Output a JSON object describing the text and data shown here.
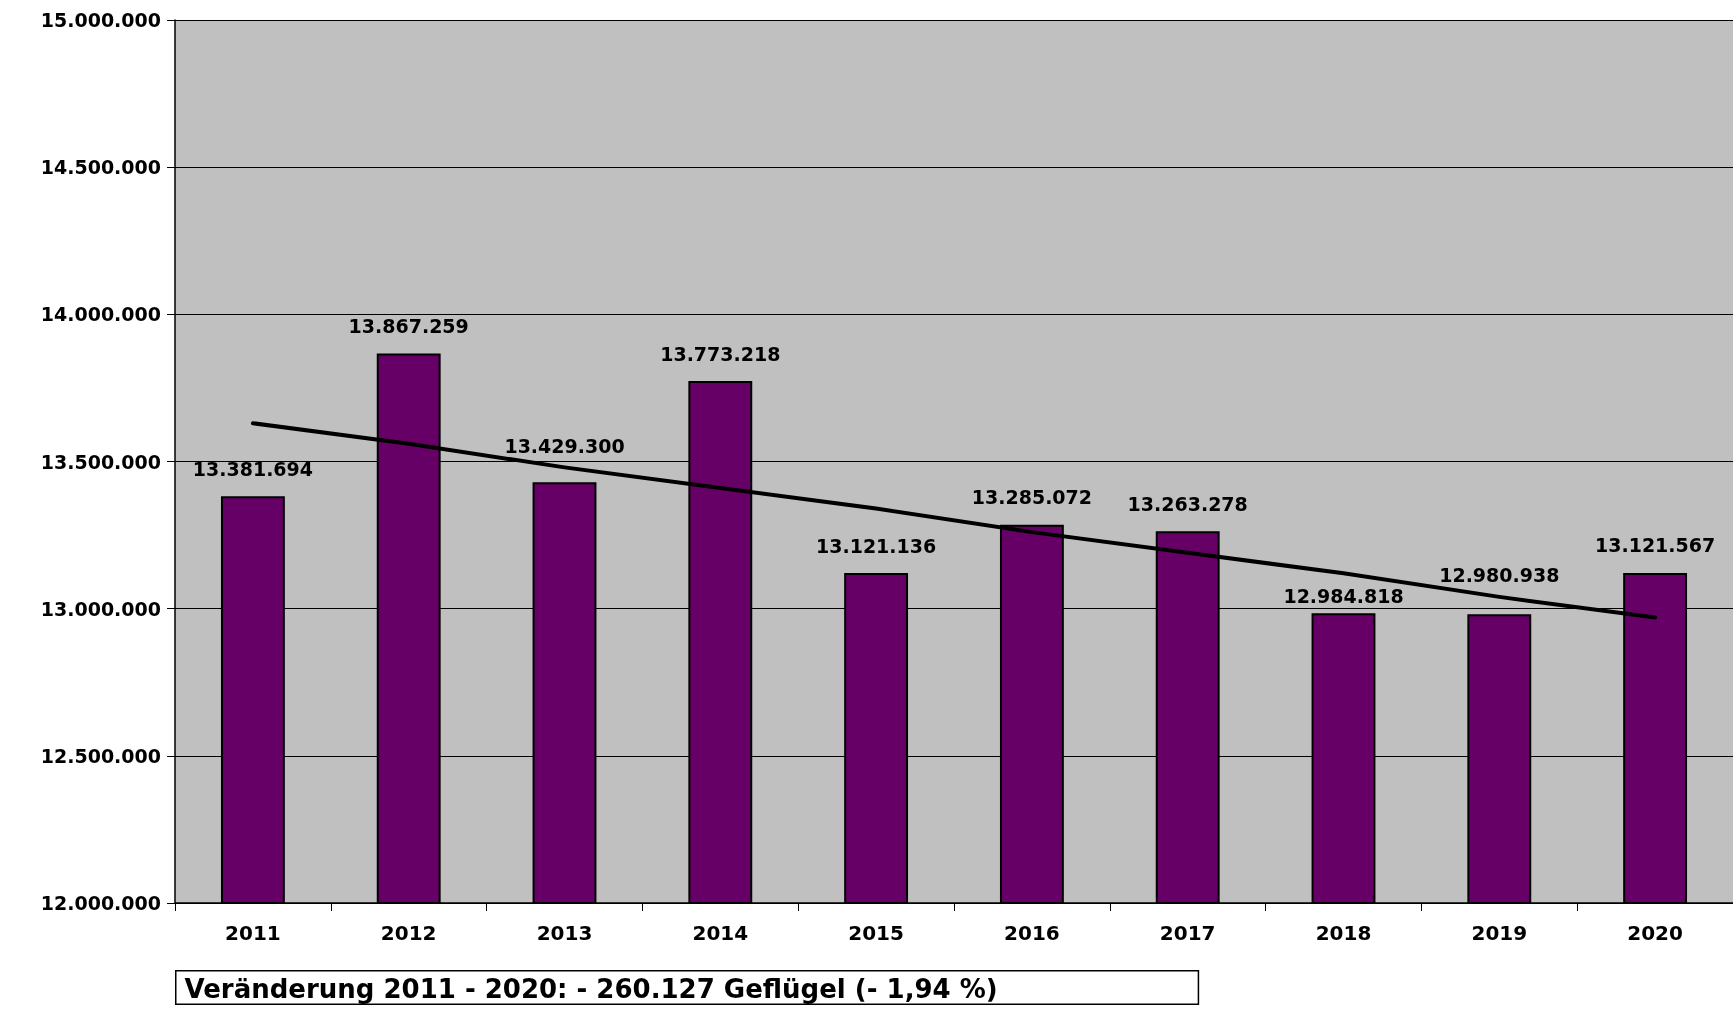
{
  "chart_data": {
    "type": "bar",
    "categories": [
      "2011",
      "2012",
      "2013",
      "2014",
      "2015",
      "2016",
      "2017",
      "2018",
      "2019",
      "2020"
    ],
    "series": [
      {
        "color": "#660066",
        "values": [
          13381694,
          13867259,
          13429300,
          13773218,
          13121136,
          13285072,
          13263278,
          12984818,
          12980938,
          13121567
        ],
        "value_labels": [
          "13.381.694",
          "13.867.259",
          "13.429.300",
          "13.773.218",
          "13.121.136",
          "13.285.072",
          "13.263.278",
          "12.984.818",
          "12.980.938",
          "13.121.567"
        ]
      },
      {
        "type": "line",
        "color": "#000000",
        "values": [
          13630000,
          13560000,
          13480000,
          13410000,
          13340000,
          13260000,
          13190000,
          13120000,
          13040000,
          12970000
        ],
        "marker": "none"
      }
    ],
    "ylim": [
      12000000,
      15000000
    ],
    "yticks": [
      {
        "value": 12000000,
        "label": "12.000.000"
      },
      {
        "value": 12500000,
        "label": "12.500.000"
      },
      {
        "value": 13000000,
        "label": "13.000.000"
      },
      {
        "value": 13500000,
        "label": "13.500.000"
      },
      {
        "value": 14000000,
        "label": "14.000.000"
      },
      {
        "value": 14500000,
        "label": "14.500.000"
      },
      {
        "value": 15000000,
        "label": "15.000.000"
      }
    ],
    "grid": "y",
    "annotations": [
      "Veränderung 2011 - 2020: - 260.127 Geflügel (- 1,94 %)"
    ]
  }
}
